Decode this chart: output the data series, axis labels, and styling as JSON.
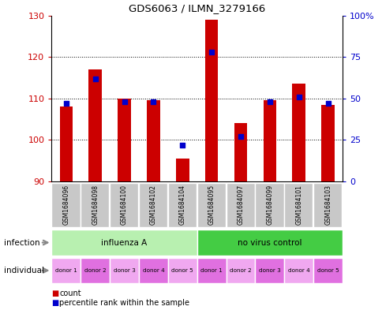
{
  "title": "GDS6063 / ILMN_3279166",
  "samples": [
    "GSM1684096",
    "GSM1684098",
    "GSM1684100",
    "GSM1684102",
    "GSM1684104",
    "GSM1684095",
    "GSM1684097",
    "GSM1684099",
    "GSM1684101",
    "GSM1684103"
  ],
  "count_values": [
    108,
    117,
    110,
    109.5,
    95.5,
    129,
    104,
    109.5,
    113.5,
    108.5
  ],
  "percentile_values": [
    47,
    62,
    48,
    48,
    22,
    78,
    27,
    48,
    51,
    47
  ],
  "ylim_left": [
    90,
    130
  ],
  "ylim_right": [
    0,
    100
  ],
  "yticks_left": [
    90,
    100,
    110,
    120,
    130
  ],
  "yticks_right": [
    0,
    25,
    50,
    75,
    100
  ],
  "yticklabels_right": [
    "0",
    "25",
    "50",
    "75",
    "100%"
  ],
  "donors": [
    "donor 1",
    "donor 2",
    "donor 3",
    "donor 4",
    "donor 5",
    "donor 1",
    "donor 2",
    "donor 3",
    "donor 4",
    "donor 5"
  ],
  "infection_row_color_light": "#b8f0b0",
  "infection_row_color_dark": "#44cc44",
  "bar_color": "#cc0000",
  "dot_color": "#0000cc",
  "bar_width": 0.45,
  "sample_bg_color": "#c8c8c8",
  "left_tick_color": "#cc0000",
  "right_tick_color": "#0000cc",
  "legend_count_color": "#cc0000",
  "legend_pct_color": "#0000cc",
  "donor_colors": [
    "#f0a8f0",
    "#e070e0"
  ],
  "arrow_color": "#888888"
}
